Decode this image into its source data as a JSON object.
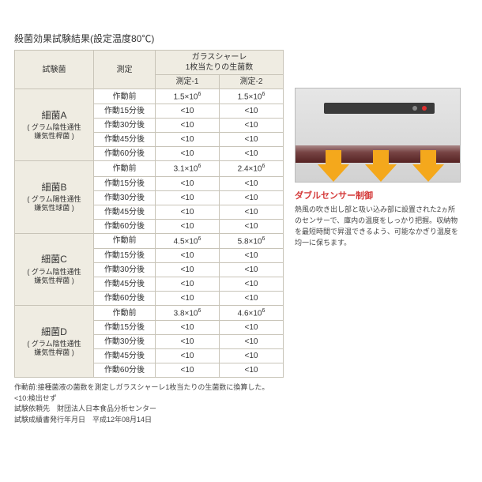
{
  "title": "殺菌効果試験結果(設定温度80℃)",
  "headers": {
    "bacteria": "試験菌",
    "measurement": "測定",
    "dish_group": "ガラスシャーレ\n1枚当たりの生菌数",
    "m1": "測定-1",
    "m2": "測定-2"
  },
  "measLabels": [
    "作動前",
    "作動15分後",
    "作動30分後",
    "作動45分後",
    "作動60分後"
  ],
  "groups": [
    {
      "name": "細菌A",
      "sub": "グラム陰性通性\n嫌気性桿菌",
      "rows": [
        {
          "m1": "1.5×10⁶",
          "m2": "1.5×10⁶"
        },
        {
          "m1": "<10",
          "m2": "<10"
        },
        {
          "m1": "<10",
          "m2": "<10"
        },
        {
          "m1": "<10",
          "m2": "<10"
        },
        {
          "m1": "<10",
          "m2": "<10"
        }
      ]
    },
    {
      "name": "細菌B",
      "sub": "グラム陽性通性\n嫌気性球菌",
      "rows": [
        {
          "m1": "3.1×10⁶",
          "m2": "2.4×10⁶"
        },
        {
          "m1": "<10",
          "m2": "<10"
        },
        {
          "m1": "<10",
          "m2": "<10"
        },
        {
          "m1": "<10",
          "m2": "<10"
        },
        {
          "m1": "<10",
          "m2": "<10"
        }
      ]
    },
    {
      "name": "細菌C",
      "sub": "グラム陰性通性\n嫌気性桿菌",
      "rows": [
        {
          "m1": "4.5×10⁶",
          "m2": "5.8×10⁶"
        },
        {
          "m1": "<10",
          "m2": "<10"
        },
        {
          "m1": "<10",
          "m2": "<10"
        },
        {
          "m1": "<10",
          "m2": "<10"
        },
        {
          "m1": "<10",
          "m2": "<10"
        }
      ]
    },
    {
      "name": "細菌D",
      "sub": "グラム陰性通性\n嫌気性桿菌",
      "rows": [
        {
          "m1": "3.8×10⁶",
          "m2": "4.6×10⁶"
        },
        {
          "m1": "<10",
          "m2": "<10"
        },
        {
          "m1": "<10",
          "m2": "<10"
        },
        {
          "m1": "<10",
          "m2": "<10"
        },
        {
          "m1": "<10",
          "m2": "<10"
        }
      ]
    }
  ],
  "notes": [
    "作動前:接種菌液の菌数を測定しガラスシャーレ1枚当たりの生菌数に換算した。",
    "<10:検出せず",
    "試験依頼先　財団法人日本食品分析センター",
    "試験成績書発行年月日　平成12年08月14日"
  ],
  "side": {
    "title": "ダブルセンサー制御",
    "text": "熱風の吹き出し部と吸い込み部に設置された2ヵ所のセンサーで、庫内の温度をしっかり把握。収納物を最短時間で昇温できるよう、可能なかぎり温度を均一に保ちます。"
  },
  "colors": {
    "border": "#c8c4b8",
    "header_bg": "#efece2",
    "accent_red": "#d43a3a",
    "arrow": "#f4a81c"
  }
}
